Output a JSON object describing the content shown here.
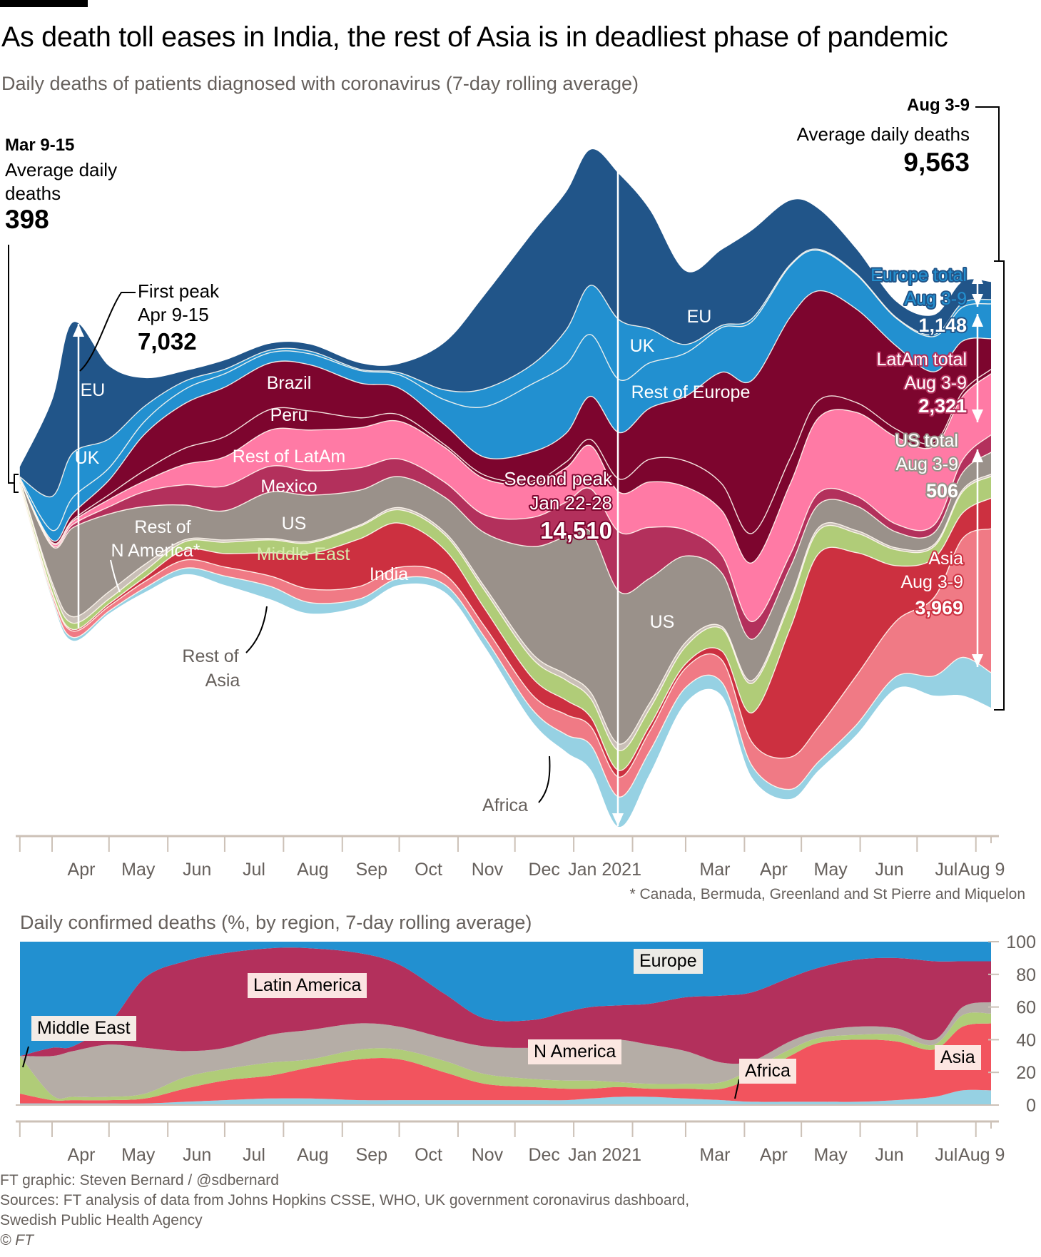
{
  "header": {
    "title": "As death toll eases in India, the rest of Asia is in deadliest phase of pandemic",
    "subtitle": "Daily deaths of patients diagnosed with coronavirus (7-day rolling average)"
  },
  "annotations": {
    "start": {
      "period": "Mar 9-15",
      "line1": "Average daily",
      "line2": "deaths",
      "value": "398"
    },
    "end": {
      "period": "Aug 3-9",
      "line1": "Average daily deaths",
      "value": "9,563"
    },
    "first_peak": {
      "label": "First peak",
      "period": "Apr 9-15",
      "value": "7,032"
    },
    "second_peak": {
      "label": "Second peak",
      "period": "Jan 22-28",
      "value": "14,510"
    },
    "europe_total": {
      "label": "Europe total",
      "period": "Aug 3-9",
      "value": "1,148"
    },
    "latam_total": {
      "label": "LatAm total",
      "period": "Aug 3-9",
      "value": "2,321"
    },
    "us_total": {
      "label": "US total",
      "period": "Aug 3-9",
      "value": "506"
    },
    "asia_total": {
      "label": "Asia",
      "period": "Aug 3-9",
      "value": "3,969"
    },
    "footnote": "* Canada, Bermuda, Greenland and St Pierre and Miquelon"
  },
  "region_labels": {
    "eu_1": "EU",
    "uk_1": "UK",
    "brazil": "Brazil",
    "peru": "Peru",
    "rest_latam": "Rest of LatAm",
    "mexico": "Mexico",
    "us_1": "US",
    "rest_nam_1": "Rest of",
    "rest_nam_2": "N America*",
    "middle_east": "Middle East",
    "india": "India",
    "rest_asia_1": "Rest of",
    "rest_asia_2": "Asia",
    "africa": "Africa",
    "eu_2": "EU",
    "uk_2": "UK",
    "rest_europe": "Rest of Europe",
    "us_2": "US"
  },
  "x_axis": {
    "ticks": [
      "",
      "Apr",
      "May",
      "Jun",
      "Jul",
      "Aug",
      "Sep",
      "Oct",
      "Nov",
      "Dec",
      "Jan 2021",
      "",
      "Mar",
      "Apr",
      "May",
      "Jun",
      "Jul",
      "Aug 9"
    ]
  },
  "lower_chart": {
    "title": "Daily confirmed deaths (%, by region, 7-day rolling average)",
    "labels": {
      "europe": "Europe",
      "latin_america": "Latin America",
      "middle_east": "Middle East",
      "n_america": "N America",
      "africa": "Africa",
      "asia": "Asia"
    },
    "y_ticks": [
      "100",
      "80",
      "60",
      "40",
      "20",
      "0"
    ]
  },
  "footer": {
    "credit": "FT graphic: Steven Bernard / @sdbernard",
    "sources_1": "Sources: FT analysis of data from Johns Hopkins CSSE, WHO, UK government coronavirus dashboard,",
    "sources_2": "Swedish Public Health Agency",
    "copyright": "© FT"
  },
  "chart_data": [
    {
      "type": "area",
      "subtype": "streamgraph",
      "title": "Daily deaths of patients diagnosed with coronavirus (7-day rolling average)",
      "xlabel": "",
      "ylabel": "Daily deaths",
      "x": [
        "2020-03-15",
        "2020-04-01",
        "2020-04-12",
        "2020-05-01",
        "2020-05-20",
        "2020-06-10",
        "2020-07-01",
        "2020-07-25",
        "2020-08-15",
        "2020-09-10",
        "2020-10-01",
        "2020-10-25",
        "2020-11-15",
        "2020-12-10",
        "2020-12-28",
        "2021-01-10",
        "2021-01-25",
        "2021-02-10",
        "2021-03-01",
        "2021-03-20",
        "2021-04-05",
        "2021-04-25",
        "2021-05-10",
        "2021-05-30",
        "2021-06-20",
        "2021-07-10",
        "2021-07-25",
        "2021-08-09"
      ],
      "x_range": [
        "2020-03-15",
        "2021-08-09"
      ],
      "totals": [
        398,
        4375,
        6969,
        5313,
        4688,
        4453,
        4922,
        5656,
        5953,
        5469,
        4844,
        5469,
        7890,
        10625,
        12578,
        13516,
        14510,
        12422,
        9453,
        9766,
        12891,
        14063,
        12656,
        10781,
        8672,
        8594,
        9297,
        9563
      ],
      "baseline_offset": [
        -47,
        -2547,
        -3453,
        -2859,
        -2391,
        -2000,
        -2234,
        -2547,
        -2859,
        -2703,
        -2234,
        -2391,
        -3578,
        -5219,
        -5891,
        -6281,
        -7531,
        -6375,
        -4812,
        -4656,
        -6453,
        -6922,
        -6297,
        -5516,
        -4500,
        -4656,
        -4656,
        -4922
      ],
      "series": [
        {
          "name": "Africa",
          "color": "#96d1e3",
          "share": [
            0.01,
            0.01,
            0.01,
            0.01,
            0.02,
            0.03,
            0.04,
            0.05,
            0.04,
            0.03,
            0.03,
            0.03,
            0.025,
            0.025,
            0.03,
            0.04,
            0.045,
            0.04,
            0.035,
            0.03,
            0.02,
            0.015,
            0.015,
            0.02,
            0.03,
            0.05,
            0.09,
            0.08
          ]
        },
        {
          "name": "Rest of Asia",
          "color": "#f07a85",
          "share": [
            0.05,
            0.02,
            0.02,
            0.02,
            0.03,
            0.04,
            0.04,
            0.04,
            0.05,
            0.05,
            0.05,
            0.04,
            0.03,
            0.03,
            0.035,
            0.03,
            0.03,
            0.035,
            0.045,
            0.05,
            0.04,
            0.05,
            0.06,
            0.1,
            0.14,
            0.2,
            0.28,
            0.33
          ]
        },
        {
          "name": "India",
          "color": "#cc3040",
          "share": [
            0.01,
            0.005,
            0.005,
            0.01,
            0.02,
            0.05,
            0.06,
            0.09,
            0.13,
            0.19,
            0.2,
            0.1,
            0.05,
            0.035,
            0.025,
            0.015,
            0.01,
            0.01,
            0.01,
            0.02,
            0.05,
            0.2,
            0.3,
            0.25,
            0.14,
            0.1,
            0.06,
            0.07
          ]
        },
        {
          "name": "Middle East",
          "color": "#b0cc78",
          "share": [
            0.2,
            0.03,
            0.02,
            0.02,
            0.03,
            0.04,
            0.05,
            0.05,
            0.04,
            0.05,
            0.06,
            0.06,
            0.05,
            0.04,
            0.035,
            0.03,
            0.03,
            0.03,
            0.04,
            0.05,
            0.05,
            0.04,
            0.04,
            0.04,
            0.04,
            0.03,
            0.05,
            0.05
          ]
        },
        {
          "name": "Rest of N America",
          "color": "#c9bfb7",
          "share": [
            0.01,
            0.02,
            0.02,
            0.03,
            0.03,
            0.01,
            0.01,
            0.005,
            0.005,
            0.005,
            0.01,
            0.01,
            0.01,
            0.01,
            0.01,
            0.01,
            0.01,
            0.01,
            0.01,
            0.005,
            0.005,
            0.005,
            0.005,
            0.005,
            0.005,
            0.005,
            0.005,
            0.005
          ]
        },
        {
          "name": "US",
          "color": "#9a918a",
          "share": [
            0.04,
            0.18,
            0.28,
            0.32,
            0.27,
            0.17,
            0.13,
            0.18,
            0.17,
            0.14,
            0.14,
            0.14,
            0.15,
            0.22,
            0.24,
            0.26,
            0.23,
            0.22,
            0.2,
            0.12,
            0.07,
            0.05,
            0.04,
            0.05,
            0.04,
            0.03,
            0.04,
            0.05
          ]
        },
        {
          "name": "Mexico",
          "color": "#b3305c",
          "share": [
            0,
            0.005,
            0.01,
            0.03,
            0.07,
            0.1,
            0.11,
            0.1,
            0.09,
            0.09,
            0.08,
            0.06,
            0.05,
            0.06,
            0.06,
            0.07,
            0.09,
            0.09,
            0.06,
            0.04,
            0.03,
            0.02,
            0.02,
            0.02,
            0.02,
            0.02,
            0.03,
            0.04
          ]
        },
        {
          "name": "Rest of LatAm",
          "color": "#ff7aa5",
          "share": [
            0.01,
            0.01,
            0.01,
            0.03,
            0.05,
            0.1,
            0.13,
            0.14,
            0.15,
            0.16,
            0.17,
            0.14,
            0.1,
            0.07,
            0.06,
            0.07,
            0.06,
            0.08,
            0.1,
            0.1,
            0.1,
            0.11,
            0.13,
            0.17,
            0.22,
            0.2,
            0.15,
            0.14
          ]
        },
        {
          "name": "Peru",
          "color": "#7d052e",
          "share": [
            0,
            0.005,
            0.005,
            0.02,
            0.05,
            0.08,
            0.09,
            0.08,
            0.07,
            0.04,
            0.03,
            0.01,
            0.01,
            0.005,
            0.01,
            0.01,
            0.02,
            0.04,
            0.06,
            0.06,
            0.05,
            0.04,
            0.03,
            0.02,
            0.02,
            0.01,
            0.01,
            0.01
          ]
        },
        {
          "name": "Brazil",
          "color": "#7d052e",
          "share": [
            0,
            0.01,
            0.02,
            0.06,
            0.17,
            0.22,
            0.22,
            0.18,
            0.17,
            0.14,
            0.12,
            0.08,
            0.05,
            0.06,
            0.05,
            0.07,
            0.07,
            0.09,
            0.15,
            0.25,
            0.26,
            0.22,
            0.19,
            0.19,
            0.21,
            0.18,
            0.12,
            0.07
          ]
        },
        {
          "name": "Rest of Europe",
          "color": "#2290d0",
          "share": [
            0.07,
            0.05,
            0.05,
            0.05,
            0.06,
            0.07,
            0.06,
            0.04,
            0.04,
            0.05,
            0.06,
            0.1,
            0.14,
            0.14,
            0.12,
            0.1,
            0.08,
            0.08,
            0.1,
            0.1,
            0.1,
            0.08,
            0.07,
            0.07,
            0.07,
            0.09,
            0.08,
            0.08
          ]
        },
        {
          "name": "UK",
          "color": "#2290d0",
          "share": [
            0.05,
            0.17,
            0.14,
            0.12,
            0.07,
            0.04,
            0.02,
            0.01,
            0.01,
            0.005,
            0.01,
            0.04,
            0.05,
            0.04,
            0.06,
            0.08,
            0.09,
            0.06,
            0.02,
            0.005,
            0.005,
            0.002,
            0.002,
            0.002,
            0.002,
            0.005,
            0.01,
            0.01
          ]
        },
        {
          "name": "EU",
          "color": "#215589",
          "share": [
            0.55,
            0.48,
            0.41,
            0.3,
            0.13,
            0.05,
            0.04,
            0.025,
            0.025,
            0.025,
            0.04,
            0.19,
            0.26,
            0.27,
            0.24,
            0.22,
            0.22,
            0.21,
            0.17,
            0.17,
            0.15,
            0.1,
            0.07,
            0.05,
            0.04,
            0.05,
            0.05,
            0.04
          ]
        }
      ]
    },
    {
      "type": "area",
      "subtype": "stacked-percent",
      "title": "Daily confirmed deaths (%, by region, 7-day rolling average)",
      "xlabel": "",
      "ylabel": "%",
      "ylim": [
        0,
        100
      ],
      "y_ticks": [
        0,
        20,
        40,
        60,
        80,
        100
      ],
      "x": [
        "2020-03-15",
        "2020-04-01",
        "2020-04-12",
        "2020-05-01",
        "2020-05-20",
        "2020-06-10",
        "2020-07-01",
        "2020-07-25",
        "2020-08-15",
        "2020-09-10",
        "2020-10-01",
        "2020-10-25",
        "2020-11-15",
        "2020-12-10",
        "2020-12-28",
        "2021-01-10",
        "2021-01-25",
        "2021-02-10",
        "2021-03-01",
        "2021-03-20",
        "2021-04-05",
        "2021-04-25",
        "2021-05-10",
        "2021-05-30",
        "2021-06-20",
        "2021-07-10",
        "2021-07-25",
        "2021-08-09"
      ],
      "series": [
        {
          "name": "Africa",
          "color": "#96d1e3",
          "values": [
            1,
            1,
            1,
            1,
            1,
            2,
            3,
            4,
            4,
            3,
            3,
            3,
            3,
            3,
            3,
            4,
            5,
            5,
            4,
            3,
            2,
            2,
            2,
            2,
            3,
            5,
            9,
            9
          ]
        },
        {
          "name": "Asia",
          "color": "#f2545e",
          "values": [
            6,
            2,
            2,
            2,
            3,
            8,
            12,
            14,
            19,
            25,
            25,
            17,
            10,
            8,
            7,
            6,
            6,
            5,
            6,
            7,
            15,
            28,
            36,
            38,
            36,
            29,
            39,
            41
          ]
        },
        {
          "name": "Middle East",
          "color": "#b0cc78",
          "values": [
            23,
            3,
            2,
            2,
            3,
            7,
            7,
            8,
            5,
            6,
            6,
            7,
            6,
            5,
            5,
            5,
            3,
            3,
            3,
            4,
            5,
            4,
            3,
            3,
            4,
            3,
            7,
            6
          ]
        },
        {
          "name": "N America",
          "color": "#b5ada6",
          "values": [
            0,
            24,
            28,
            32,
            28,
            16,
            13,
            17,
            18,
            16,
            14,
            14,
            17,
            19,
            22,
            24,
            26,
            24,
            20,
            12,
            5,
            5,
            4,
            5,
            4,
            3,
            5,
            7
          ]
        },
        {
          "name": "Latin America",
          "color": "#b3305c",
          "values": [
            0,
            5,
            3,
            13,
            43,
            55,
            58,
            53,
            50,
            43,
            38,
            27,
            17,
            17,
            20,
            21,
            21,
            25,
            33,
            41,
            42,
            39,
            39,
            41,
            43,
            48,
            28,
            25
          ]
        },
        {
          "name": "Europe",
          "color": "#2290d0",
          "values": [
            70,
            65,
            64,
            50,
            22,
            12,
            7,
            4,
            4,
            7,
            14,
            32,
            47,
            48,
            43,
            40,
            39,
            38,
            34,
            33,
            31,
            22,
            16,
            11,
            10,
            12,
            12,
            12
          ]
        }
      ]
    }
  ]
}
